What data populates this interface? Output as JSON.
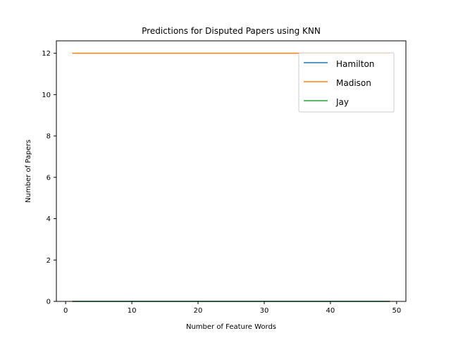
{
  "chart_data": {
    "type": "line",
    "title": "Predictions for Disputed Papers using KNN",
    "xlabel": "Number of Feature Words",
    "ylabel": "Number of Papers",
    "xlim": [
      -1.4,
      51.4
    ],
    "ylim": [
      0,
      12.6
    ],
    "xticks": [
      0,
      10,
      20,
      30,
      40,
      50
    ],
    "yticks": [
      0,
      2,
      4,
      6,
      8,
      10,
      12
    ],
    "grid": false,
    "legend_position": "top-right",
    "x": [
      1,
      49
    ],
    "series": [
      {
        "name": "Hamilton",
        "color": "#1f77b4",
        "values": [
          0,
          0
        ]
      },
      {
        "name": "Madison",
        "color": "#ff7f0e",
        "values": [
          12,
          12
        ]
      },
      {
        "name": "Jay",
        "color": "#2ca02c",
        "values": [
          0,
          0
        ]
      }
    ]
  }
}
